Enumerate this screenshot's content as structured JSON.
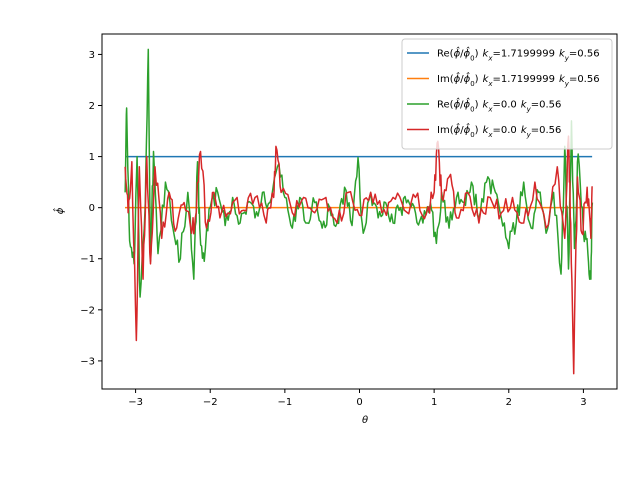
{
  "chart_data": {
    "type": "line",
    "xlabel": "θ",
    "ylabel": "ϕ̂",
    "xlim": [
      -3.45,
      3.45
    ],
    "ylim": [
      -3.55,
      3.4
    ],
    "xticks": [
      -3,
      -2,
      -1,
      0,
      1,
      2,
      3
    ],
    "yticks": [
      -3,
      -2,
      -1,
      0,
      1,
      2,
      3
    ],
    "xtick_labels": [
      "−3",
      "−2",
      "−1",
      "0",
      "1",
      "2",
      "3"
    ],
    "ytick_labels": [
      "−3",
      "−2",
      "−1",
      "0",
      "1",
      "2",
      "3"
    ],
    "grid": false,
    "legend_position": "top-right",
    "x_range": [
      -3.1416,
      3.1166
    ],
    "series": [
      {
        "name": "Re(ϕ̂/ϕ̂₀) kx=1.7199999 ky=0.56",
        "legend": {
          "part1": "Re(",
          "phi": "ϕ̂",
          "slash": "/",
          "phi0": "ϕ̂",
          "zero": "0",
          "close": ")",
          "kx_var": "k",
          "kx_sub": "x",
          "kx_val": "=1.7199999",
          "ky_var": "k",
          "ky_sub": "y",
          "ky_val": "=0.56"
        },
        "color": "#1f77b4",
        "pattern": "constant",
        "value": 1.0
      },
      {
        "name": "Im(ϕ̂/ϕ̂₀) kx=1.7199999 ky=0.56",
        "legend": {
          "part1": "Im(",
          "phi": "ϕ̂",
          "slash": "/",
          "phi0": "ϕ̂",
          "zero": "0",
          "close": ")",
          "kx_var": "k",
          "kx_sub": "x",
          "kx_val": "=1.7199999",
          "ky_var": "k",
          "ky_sub": "y",
          "ky_val": "=0.56"
        },
        "color": "#ff7f0e",
        "pattern": "constant",
        "value": 0.0
      },
      {
        "name": "Re(ϕ̂/ϕ̂₀) kx=0.0 ky=0.56",
        "legend": {
          "part1": "Re(",
          "phi": "ϕ̂",
          "slash": "/",
          "phi0": "ϕ̂",
          "zero": "0",
          "close": ")",
          "kx_var": "k",
          "kx_sub": "x",
          "kx_val": "=0.0",
          "ky_var": "k",
          "ky_sub": "y",
          "ky_val": "=0.56"
        },
        "color": "#2ca02c",
        "pattern": "noise",
        "anchors": [
          [
            -3.14,
            0.3
          ],
          [
            -3.12,
            1.95
          ],
          [
            -3.08,
            -0.65
          ],
          [
            -3.02,
            -1.1
          ],
          [
            -2.98,
            1.0
          ],
          [
            -2.94,
            -1.75
          ],
          [
            -2.87,
            0.1
          ],
          [
            -2.83,
            3.1
          ],
          [
            -2.8,
            -1.05
          ],
          [
            -2.76,
            1.1
          ],
          [
            -2.7,
            -0.9
          ],
          [
            -2.6,
            0.5
          ],
          [
            -2.5,
            -0.4
          ],
          [
            -2.4,
            -1.0
          ],
          [
            -2.3,
            0.3
          ],
          [
            -2.22,
            -1.4
          ],
          [
            -2.17,
            0.9
          ],
          [
            -2.14,
            -0.4
          ],
          [
            -2.08,
            -1.05
          ],
          [
            -2.0,
            0.0
          ],
          [
            -1.9,
            0.3
          ],
          [
            -1.8,
            -0.35
          ],
          [
            -1.7,
            0.2
          ],
          [
            -1.6,
            -0.3
          ],
          [
            -1.5,
            0.1
          ],
          [
            -1.4,
            -0.2
          ],
          [
            -1.3,
            0.3
          ],
          [
            -1.2,
            0.1
          ],
          [
            -1.1,
            0.8
          ],
          [
            -1.0,
            0.2
          ],
          [
            -0.9,
            -0.4
          ],
          [
            -0.8,
            0.2
          ],
          [
            -0.7,
            -0.3
          ],
          [
            -0.6,
            0.1
          ],
          [
            -0.5,
            -0.4
          ],
          [
            -0.4,
            0.0
          ],
          [
            -0.3,
            -0.3
          ],
          [
            -0.2,
            0.4
          ],
          [
            -0.1,
            -0.35
          ],
          [
            -0.02,
            0.98
          ],
          [
            0.05,
            -0.5
          ],
          [
            0.15,
            0.3
          ],
          [
            0.25,
            -0.2
          ],
          [
            0.35,
            0.1
          ],
          [
            0.45,
            -0.3
          ],
          [
            0.55,
            0.0
          ],
          [
            0.65,
            0.15
          ],
          [
            0.75,
            -0.1
          ],
          [
            0.85,
            -0.3
          ],
          [
            0.95,
            0.1
          ],
          [
            1.03,
            -0.7
          ],
          [
            1.1,
            0.3
          ],
          [
            1.2,
            -0.4
          ],
          [
            1.3,
            0.2
          ],
          [
            1.4,
            0.1
          ],
          [
            1.5,
            0.5
          ],
          [
            1.6,
            -0.2
          ],
          [
            1.7,
            0.5
          ],
          [
            1.8,
            0.4
          ],
          [
            1.9,
            -0.2
          ],
          [
            2.0,
            -0.8
          ],
          [
            2.1,
            -0.3
          ],
          [
            2.2,
            0.5
          ],
          [
            2.3,
            -0.4
          ],
          [
            2.4,
            0.3
          ],
          [
            2.5,
            -0.5
          ],
          [
            2.6,
            0.3
          ],
          [
            2.7,
            -1.3
          ],
          [
            2.75,
            1.2
          ],
          [
            2.8,
            -1.2
          ],
          [
            2.84,
            1.7
          ],
          [
            2.88,
            -0.8
          ],
          [
            2.93,
            1.05
          ],
          [
            3.0,
            -0.5
          ],
          [
            3.06,
            -0.9
          ],
          [
            3.1,
            -1.4
          ],
          [
            3.12,
            0.1
          ]
        ]
      },
      {
        "name": "Im(ϕ̂/ϕ̂₀) kx=0.0 ky=0.56",
        "legend": {
          "part1": "Im(",
          "phi": "ϕ̂",
          "slash": "/",
          "phi0": "ϕ̂",
          "zero": "0",
          "close": ")",
          "kx_var": "k",
          "kx_sub": "x",
          "kx_val": "=0.0",
          "ky_var": "k",
          "ky_sub": "y",
          "ky_val": "=0.56"
        },
        "color": "#d62728",
        "pattern": "noise",
        "anchors": [
          [
            -3.14,
            0.8
          ],
          [
            -3.1,
            -0.1
          ],
          [
            -3.05,
            0.9
          ],
          [
            -2.99,
            -2.6
          ],
          [
            -2.95,
            0.8
          ],
          [
            -2.9,
            -1.4
          ],
          [
            -2.85,
            1.0
          ],
          [
            -2.8,
            -1.1
          ],
          [
            -2.74,
            0.8
          ],
          [
            -2.65,
            -0.6
          ],
          [
            -2.55,
            0.3
          ],
          [
            -2.45,
            -0.4
          ],
          [
            -2.35,
            0.1
          ],
          [
            -2.25,
            -0.5
          ],
          [
            -2.2,
            -0.2
          ],
          [
            -2.13,
            1.1
          ],
          [
            -2.05,
            -0.4
          ],
          [
            -1.95,
            0.3
          ],
          [
            -1.85,
            -0.1
          ],
          [
            -1.7,
            0.1
          ],
          [
            -1.55,
            -0.05
          ],
          [
            -1.4,
            0.2
          ],
          [
            -1.25,
            -0.3
          ],
          [
            -1.15,
            0.2
          ],
          [
            -1.12,
            1.2
          ],
          [
            -1.05,
            0.3
          ],
          [
            -0.9,
            -0.1
          ],
          [
            -0.75,
            0.2
          ],
          [
            -0.6,
            -0.1
          ],
          [
            -0.45,
            0.2
          ],
          [
            -0.3,
            -0.3
          ],
          [
            -0.15,
            0.3
          ],
          [
            0.0,
            -0.15
          ],
          [
            0.15,
            0.3
          ],
          [
            0.3,
            -0.1
          ],
          [
            0.45,
            0.2
          ],
          [
            0.6,
            -0.05
          ],
          [
            0.75,
            0.2
          ],
          [
            0.9,
            -0.1
          ],
          [
            1.0,
            0.3
          ],
          [
            1.05,
            1.3
          ],
          [
            1.1,
            0.2
          ],
          [
            1.2,
            0.6
          ],
          [
            1.3,
            -0.2
          ],
          [
            1.45,
            0.3
          ],
          [
            1.6,
            -0.3
          ],
          [
            1.75,
            0.2
          ],
          [
            1.9,
            -0.1
          ],
          [
            2.05,
            0.2
          ],
          [
            2.2,
            -0.3
          ],
          [
            2.35,
            0.5
          ],
          [
            2.5,
            -0.4
          ],
          [
            2.65,
            0.8
          ],
          [
            2.75,
            -0.6
          ],
          [
            2.8,
            1.4
          ],
          [
            2.83,
            -0.3
          ],
          [
            2.87,
            -3.25
          ],
          [
            2.92,
            0.6
          ],
          [
            2.98,
            -0.5
          ],
          [
            3.05,
            0.4
          ],
          [
            3.1,
            -0.6
          ],
          [
            3.12,
            0.4
          ]
        ]
      }
    ]
  }
}
